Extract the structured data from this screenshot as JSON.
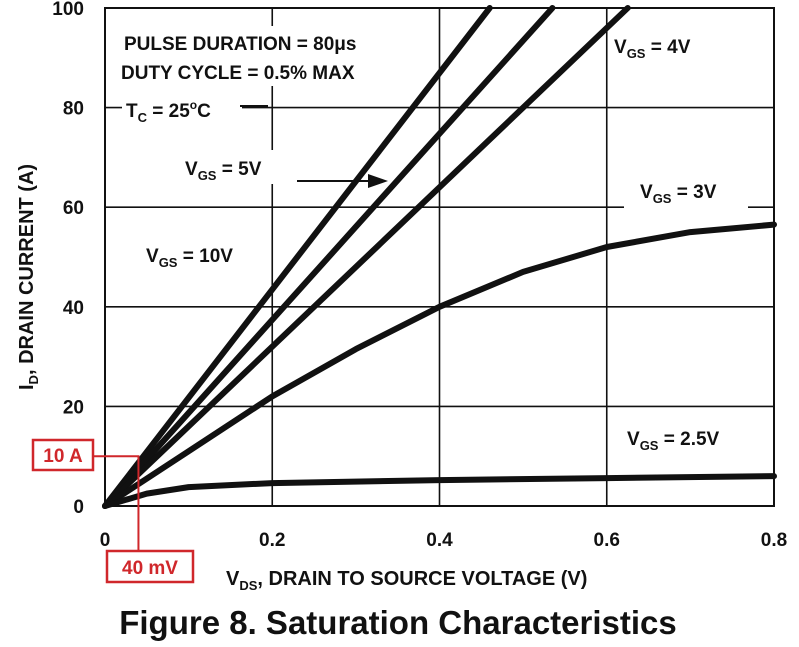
{
  "chart_data": {
    "type": "line",
    "title": "Figure 8.  Saturation Characteristics",
    "xlabel": {
      "main": "V",
      "sub": "DS",
      "rest": ", DRAIN TO SOURCE VOLTAGE (V)"
    },
    "ylabel": {
      "main": "I",
      "sub": "D",
      "rest": ", DRAIN CURRENT (A)"
    },
    "xlim": [
      0,
      0.8
    ],
    "ylim": [
      0,
      100
    ],
    "xticks": [
      "0",
      "0.2",
      "0.4",
      "0.6",
      "0.8"
    ],
    "yticks": [
      "0",
      "20",
      "40",
      "60",
      "80",
      "100"
    ],
    "grid": true,
    "series": [
      {
        "name": "VGS = 10V",
        "x": [
          0,
          0.46
        ],
        "y": [
          0,
          100
        ]
      },
      {
        "name": "VGS = 5V",
        "x": [
          0,
          0.535
        ],
        "y": [
          0,
          100
        ]
      },
      {
        "name": "VGS = 4V",
        "x": [
          0,
          0.625
        ],
        "y": [
          0,
          100
        ]
      },
      {
        "name": "VGS = 3V",
        "x": [
          0,
          0.1,
          0.2,
          0.3,
          0.4,
          0.5,
          0.6,
          0.7,
          0.8
        ],
        "y": [
          0,
          11,
          22,
          31.5,
          40,
          47,
          52,
          55,
          56.5
        ]
      },
      {
        "name": "VGS = 2.5V",
        "x": [
          0,
          0.05,
          0.1,
          0.2,
          0.4,
          0.6,
          0.8
        ],
        "y": [
          0,
          2.5,
          3.8,
          4.6,
          5.2,
          5.6,
          6
        ]
      }
    ],
    "annotations": {
      "pulse": "PULSE DURATION = 80μs",
      "duty": "DUTY CYCLE = 0.5% MAX",
      "tc": {
        "main": "T",
        "sub": "C",
        "eq": " = 25",
        "sup": "o",
        "unit": "C"
      },
      "vgs_labels": [
        {
          "main": "V",
          "sub": "GS",
          "value": " = 4V"
        },
        {
          "main": "V",
          "sub": "GS",
          "value": " = 5V"
        },
        {
          "main": "V",
          "sub": "GS",
          "value": " = 3V"
        },
        {
          "main": "V",
          "sub": "GS",
          "value": " = 10V"
        },
        {
          "main": "V",
          "sub": "GS",
          "value": " = 2.5V"
        }
      ]
    },
    "callouts": {
      "point": {
        "x": 0.04,
        "y": 10
      },
      "y_label": "10 A",
      "x_label": "40 mV",
      "color": "#d0272b"
    }
  }
}
